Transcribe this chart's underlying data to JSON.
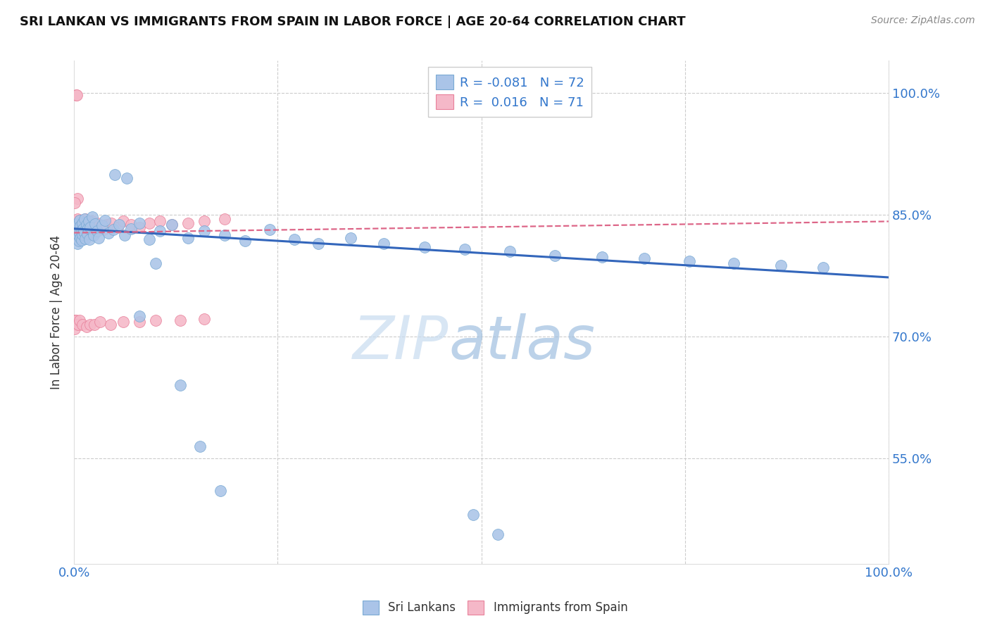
{
  "title": "SRI LANKAN VS IMMIGRANTS FROM SPAIN IN LABOR FORCE | AGE 20-64 CORRELATION CHART",
  "source": "Source: ZipAtlas.com",
  "ylabel": "In Labor Force | Age 20-64",
  "blue_color": "#aac4e8",
  "blue_edge_color": "#7aaad4",
  "pink_color": "#f5b8c8",
  "pink_edge_color": "#e8809a",
  "blue_line_color": "#3366bb",
  "pink_line_color": "#dd6688",
  "blue_label": "R = -0.081   N = 72",
  "pink_label": "R =  0.016   N = 71",
  "blue_N": 72,
  "pink_N": 71,
  "blue_R": -0.081,
  "pink_R": 0.016,
  "xlim": [
    0.0,
    1.0
  ],
  "ylim": [
    0.42,
    1.04
  ],
  "yticks": [
    0.55,
    0.7,
    0.85,
    1.0
  ],
  "ytick_labels": [
    "55.0%",
    "70.0%",
    "85.0%",
    "100.0%"
  ],
  "xtick_labels": [
    "0.0%",
    "100.0%"
  ],
  "watermark": "ZIPatlas",
  "title_fontsize": 13,
  "tick_fontsize": 13,
  "blue_x": [
    0.001,
    0.002,
    0.003,
    0.003,
    0.004,
    0.004,
    0.005,
    0.005,
    0.006,
    0.006,
    0.007,
    0.007,
    0.008,
    0.008,
    0.009,
    0.009,
    0.01,
    0.01,
    0.011,
    0.012,
    0.013,
    0.014,
    0.015,
    0.016,
    0.017,
    0.018,
    0.019,
    0.02,
    0.022,
    0.024,
    0.026,
    0.028,
    0.03,
    0.034,
    0.038,
    0.042,
    0.048,
    0.055,
    0.062,
    0.07,
    0.08,
    0.092,
    0.105,
    0.12,
    0.14,
    0.16,
    0.185,
    0.21,
    0.24,
    0.27,
    0.3,
    0.34,
    0.38,
    0.43,
    0.48,
    0.535,
    0.59,
    0.648,
    0.7,
    0.755,
    0.81,
    0.868,
    0.92,
    0.05,
    0.065,
    0.08,
    0.1,
    0.13,
    0.155,
    0.18,
    0.52,
    0.49
  ],
  "blue_y": [
    0.828,
    0.832,
    0.835,
    0.82,
    0.84,
    0.815,
    0.838,
    0.825,
    0.83,
    0.818,
    0.843,
    0.828,
    0.836,
    0.822,
    0.831,
    0.819,
    0.84,
    0.826,
    0.833,
    0.829,
    0.845,
    0.821,
    0.838,
    0.827,
    0.834,
    0.842,
    0.82,
    0.835,
    0.848,
    0.825,
    0.839,
    0.83,
    0.822,
    0.837,
    0.843,
    0.828,
    0.832,
    0.838,
    0.825,
    0.833,
    0.84,
    0.82,
    0.83,
    0.838,
    0.822,
    0.83,
    0.825,
    0.818,
    0.832,
    0.82,
    0.815,
    0.822,
    0.815,
    0.81,
    0.808,
    0.805,
    0.8,
    0.798,
    0.796,
    0.793,
    0.79,
    0.788,
    0.785,
    0.9,
    0.895,
    0.725,
    0.79,
    0.64,
    0.565,
    0.51,
    0.456,
    0.48
  ],
  "pink_x": [
    0.001,
    0.001,
    0.002,
    0.002,
    0.002,
    0.003,
    0.003,
    0.003,
    0.004,
    0.004,
    0.005,
    0.005,
    0.005,
    0.006,
    0.006,
    0.006,
    0.007,
    0.007,
    0.008,
    0.008,
    0.009,
    0.009,
    0.01,
    0.01,
    0.011,
    0.012,
    0.013,
    0.014,
    0.015,
    0.016,
    0.017,
    0.018,
    0.02,
    0.022,
    0.025,
    0.028,
    0.032,
    0.036,
    0.04,
    0.046,
    0.053,
    0.06,
    0.07,
    0.08,
    0.092,
    0.105,
    0.12,
    0.14,
    0.16,
    0.185,
    0.002,
    0.003,
    0.004,
    0.001,
    0.001,
    0.002,
    0.003,
    0.001,
    0.005,
    0.007,
    0.01,
    0.015,
    0.02,
    0.025,
    0.032,
    0.045,
    0.06,
    0.08,
    0.1,
    0.13,
    0.16
  ],
  "pink_y": [
    0.832,
    0.828,
    0.84,
    0.836,
    0.822,
    0.842,
    0.838,
    0.825,
    0.845,
    0.83,
    0.838,
    0.828,
    0.822,
    0.835,
    0.84,
    0.82,
    0.843,
    0.83,
    0.838,
    0.825,
    0.832,
    0.84,
    0.835,
    0.825,
    0.842,
    0.83,
    0.838,
    0.845,
    0.828,
    0.835,
    0.84,
    0.832,
    0.838,
    0.842,
    0.835,
    0.84,
    0.835,
    0.832,
    0.838,
    0.84,
    0.835,
    0.842,
    0.838,
    0.835,
    0.84,
    0.842,
    0.838,
    0.84,
    0.842,
    0.845,
    0.998,
    0.998,
    0.87,
    0.865,
    0.72,
    0.72,
    0.715,
    0.71,
    0.715,
    0.72,
    0.715,
    0.712,
    0.715,
    0.715,
    0.718,
    0.715,
    0.718,
    0.718,
    0.72,
    0.72,
    0.722
  ]
}
